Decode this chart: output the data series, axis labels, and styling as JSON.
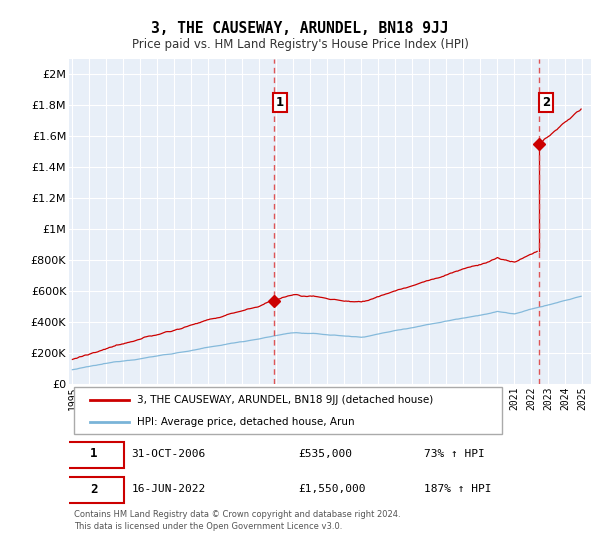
{
  "title": "3, THE CAUSEWAY, ARUNDEL, BN18 9JJ",
  "subtitle": "Price paid vs. HM Land Registry's House Price Index (HPI)",
  "xlim": [
    1994.8,
    2025.5
  ],
  "ylim": [
    0,
    2100000
  ],
  "yticks": [
    0,
    200000,
    400000,
    600000,
    800000,
    1000000,
    1200000,
    1400000,
    1600000,
    1800000,
    2000000
  ],
  "ytick_labels": [
    "£0",
    "£200K",
    "£400K",
    "£600K",
    "£800K",
    "£1M",
    "£1.2M",
    "£1.4M",
    "£1.6M",
    "£1.8M",
    "£2M"
  ],
  "xticks": [
    1995,
    1996,
    1997,
    1998,
    1999,
    2000,
    2001,
    2002,
    2003,
    2004,
    2005,
    2006,
    2007,
    2008,
    2009,
    2010,
    2011,
    2012,
    2013,
    2014,
    2015,
    2016,
    2017,
    2018,
    2019,
    2020,
    2021,
    2022,
    2023,
    2024,
    2025
  ],
  "hpi_color": "#7ab4d8",
  "price_color": "#cc0000",
  "dashed_color": "#dd4444",
  "bg_color": "#e8eff8",
  "grid_color": "#ffffff",
  "sale1_x": 2006.833,
  "sale1_y": 535000,
  "sale2_x": 2022.458,
  "sale2_y": 1550000,
  "legend_label1": "3, THE CAUSEWAY, ARUNDEL, BN18 9JJ (detached house)",
  "legend_label2": "HPI: Average price, detached house, Arun",
  "table_row1": [
    "1",
    "31-OCT-2006",
    "£535,000",
    "73% ↑ HPI"
  ],
  "table_row2": [
    "2",
    "16-JUN-2022",
    "£1,550,000",
    "187% ↑ HPI"
  ],
  "footer": "Contains HM Land Registry data © Crown copyright and database right 2024.\nThis data is licensed under the Open Government Licence v3.0."
}
